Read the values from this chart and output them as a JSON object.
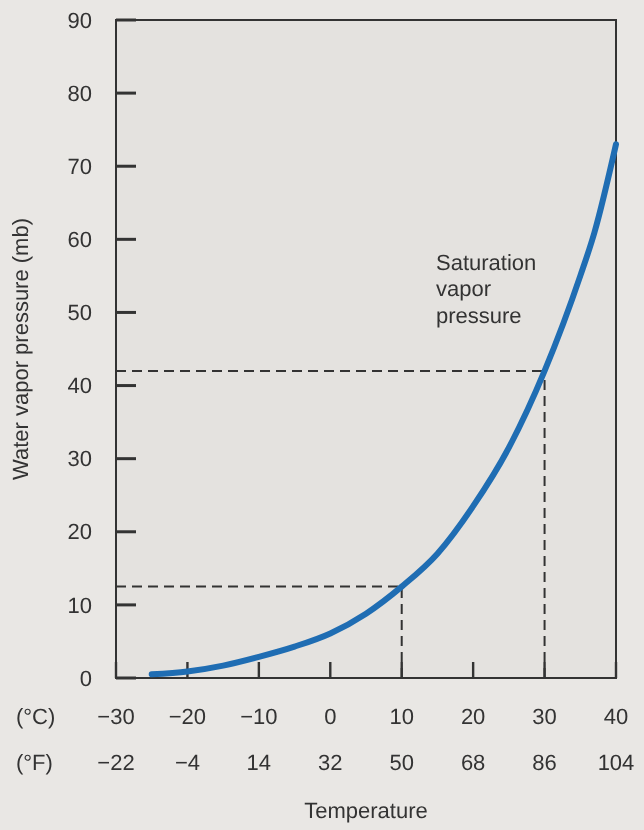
{
  "chart_data": {
    "type": "line",
    "xlabel": "Temperature",
    "ylabel": "Water vapor pressure (mb)",
    "annotations": [
      "(°C)",
      "(°F)",
      "Saturation vapor pressure"
    ],
    "series": [
      {
        "color": "#1f6db3",
        "x": [
          -25,
          -20,
          -15,
          -10,
          -5,
          0,
          5,
          10,
          15,
          20,
          25,
          30,
          35,
          37,
          40
        ],
        "values": [
          0.5,
          0.9,
          1.7,
          2.9,
          4.3,
          6.1,
          8.8,
          12.5,
          17,
          23.5,
          31.5,
          42,
          55,
          61,
          73
        ]
      }
    ],
    "xlim": [
      -30,
      40
    ],
    "xticks": [
      -30,
      -20,
      -10,
      0,
      10,
      20,
      30,
      40
    ],
    "x2lim": [
      -22,
      104
    ],
    "x2ticks": [
      -22,
      -4,
      14,
      32,
      50,
      68,
      86,
      104
    ],
    "ylim": [
      0,
      90
    ],
    "yticks": [
      0,
      10,
      20,
      30,
      40,
      50,
      60,
      70,
      80,
      90
    ],
    "ref_lines": [
      {
        "axis": "x",
        "value": 10,
        "line_style": "dashed"
      },
      {
        "axis": "y",
        "value": 12.5,
        "line_style": "dashed"
      },
      {
        "axis": "x",
        "value": 30,
        "line_style": "dashed"
      },
      {
        "axis": "y",
        "value": 42,
        "line_style": "dashed"
      }
    ],
    "marker": "none",
    "line_style": "solid",
    "grid": false
  }
}
